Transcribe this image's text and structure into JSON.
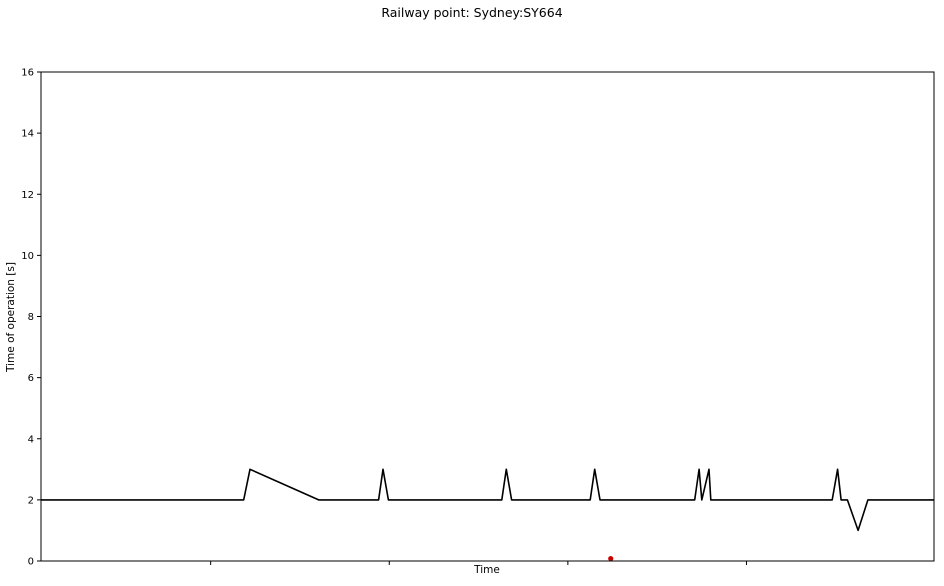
{
  "chart_data": {
    "type": "line",
    "title": "Railway point: Sydney:SY664",
    "xlabel": "Time",
    "ylabel": "Time of operation [s]",
    "ylim": [
      0,
      16
    ],
    "xlim": [
      0,
      1
    ],
    "yticks": [
      0,
      2,
      4,
      6,
      8,
      10,
      12,
      14,
      16
    ],
    "xticks": [
      0.19,
      0.39,
      0.59,
      0.79
    ],
    "xtick_labels": [
      "",
      "",
      "",
      ""
    ],
    "grid": false,
    "legend": "none",
    "series": [
      {
        "color": "#000000",
        "x": [
          0,
          0.227,
          0.234,
          0.311,
          0.378,
          0.383,
          0.389,
          0.516,
          0.521,
          0.527,
          0.615,
          0.62,
          0.626,
          0.732,
          0.737,
          0.74,
          0.748,
          0.75,
          0.886,
          0.892,
          0.896,
          0.903,
          0.915,
          0.926,
          1.0
        ],
        "y": [
          2,
          2,
          3,
          2,
          2,
          3,
          2,
          2,
          3,
          2,
          2,
          3,
          2,
          2,
          3,
          2,
          3,
          2,
          2,
          3,
          2,
          2,
          1,
          2,
          2
        ]
      }
    ],
    "markers": [
      {
        "x": 0.638,
        "y": 0.08,
        "color": "#cc0000"
      }
    ]
  }
}
